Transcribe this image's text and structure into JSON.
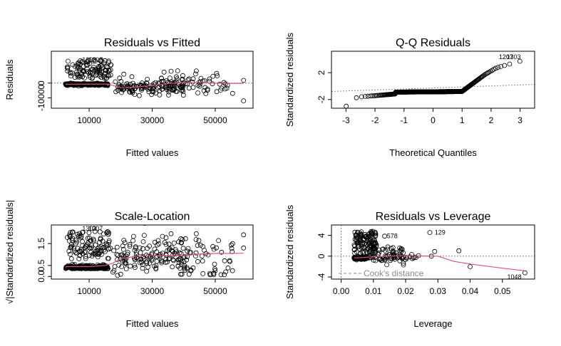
{
  "colors": {
    "points": "#000000",
    "smooth": "#DF536B",
    "refline": "#888888",
    "cook": "#888888"
  },
  "chart_data": [
    {
      "type": "scatter",
      "title": "Residuals vs Fitted",
      "xlabel": "Fitted values",
      "ylabel": "Residuals",
      "xlim": [
        -2000,
        62000
      ],
      "ylim": [
        -17000,
        21500
      ],
      "xticks": [
        "10000",
        "30000",
        "50000"
      ],
      "xtick_values": [
        10000,
        30000,
        50000
      ],
      "yticks": [
        "-10000",
        "0"
      ],
      "ytick_values": [
        -10000,
        0
      ],
      "reference_line": 0,
      "point_labels": [
        {
          "text": "1207",
          "x": 9800,
          "y": 15800
        },
        {
          "text": "1303",
          "x": 7800,
          "y": 15800
        }
      ],
      "smooth": {
        "x": [
          2500,
          10000,
          16000,
          20000,
          25000,
          30000,
          35000,
          40000,
          45000,
          50000,
          55000,
          59000
        ],
        "y": [
          -800,
          -700,
          -700,
          -3200,
          -2600,
          -1700,
          -300,
          300,
          400,
          -100,
          -200,
          -200
        ]
      }
    },
    {
      "type": "scatter",
      "title": "Q-Q Residuals",
      "xlabel": "Theoretical Quantiles",
      "ylabel": "Standardized residuals",
      "xlim": [
        -3.5,
        3.5
      ],
      "ylim": [
        -3.3,
        5.2
      ],
      "xticks": [
        "-3",
        "-2",
        "-1",
        "0",
        "1",
        "2",
        "3"
      ],
      "xtick_values": [
        -3,
        -2,
        -1,
        0,
        1,
        2,
        3
      ],
      "yticks": [
        "-2",
        "2"
      ],
      "ytick_values": [
        -2,
        2
      ],
      "reference_line": {
        "from": [
          -3.5,
          -0.8
        ],
        "to": [
          3.5,
          0.25
        ]
      },
      "point_labels": [
        {
          "text": "1207",
          "x": 2.27,
          "y": 4.35
        },
        {
          "text": "1303",
          "x": 2.53,
          "y": 4.35
        }
      ]
    },
    {
      "type": "scatter",
      "title": "Scale-Location",
      "xlabel": "Fitted values",
      "ylabel": "√|Standardized residuals|",
      "xlim": [
        -2000,
        62000
      ],
      "ylim": [
        -0.12,
        2.35
      ],
      "xticks": [
        "10000",
        "30000",
        "50000"
      ],
      "xtick_values": [
        10000,
        30000,
        50000
      ],
      "yticks": [
        "0.0",
        "0.5",
        "1.5"
      ],
      "ytick_values": [
        0,
        0.5,
        1.5
      ],
      "point_labels": [
        {
          "text": "1207",
          "x": 9800,
          "y": 2.18
        },
        {
          "text": "1303",
          "x": 7800,
          "y": 2.18
        }
      ],
      "smooth": {
        "x": [
          2500,
          10000,
          15000,
          17500,
          20000,
          25000,
          30000,
          35000,
          40000,
          45000,
          50000,
          55000,
          59000
        ],
        "y": [
          0.45,
          0.45,
          0.5,
          0.6,
          0.82,
          0.92,
          0.96,
          0.95,
          0.95,
          1.02,
          1.05,
          1.05,
          1.06
        ]
      }
    },
    {
      "type": "scatter",
      "title": "Residuals vs Leverage",
      "xlabel": "Leverage",
      "ylabel": "Standardized residuals",
      "xlim": [
        -0.003,
        0.06
      ],
      "ylim": [
        -4.4,
        6.0
      ],
      "xticks": [
        "0.00",
        "0.01",
        "0.02",
        "0.03",
        "0.04",
        "0.05"
      ],
      "xtick_values": [
        0,
        0.01,
        0.02,
        0.03,
        0.04,
        0.05
      ],
      "yticks": [
        "-4",
        "0",
        "4"
      ],
      "ytick_values": [
        -4,
        0,
        4
      ],
      "legend": {
        "label": "Cook's distance",
        "position": "bottom-left"
      },
      "point_labels": [
        {
          "text": "578",
          "x": 0.0142,
          "y": 3.85
        },
        {
          "text": "129",
          "x": 0.029,
          "y": 4.55
        },
        {
          "text": "1048",
          "x": 0.0515,
          "y": -4.0
        }
      ],
      "smooth": {
        "x": [
          0.004,
          0.006,
          0.01,
          0.016,
          0.024,
          0.03,
          0.035,
          0.04,
          0.05,
          0.057
        ],
        "y": [
          -0.35,
          -0.3,
          -0.1,
          0.05,
          0.05,
          0.0,
          -1.0,
          -1.5,
          -2.3,
          -2.8
        ]
      }
    }
  ]
}
